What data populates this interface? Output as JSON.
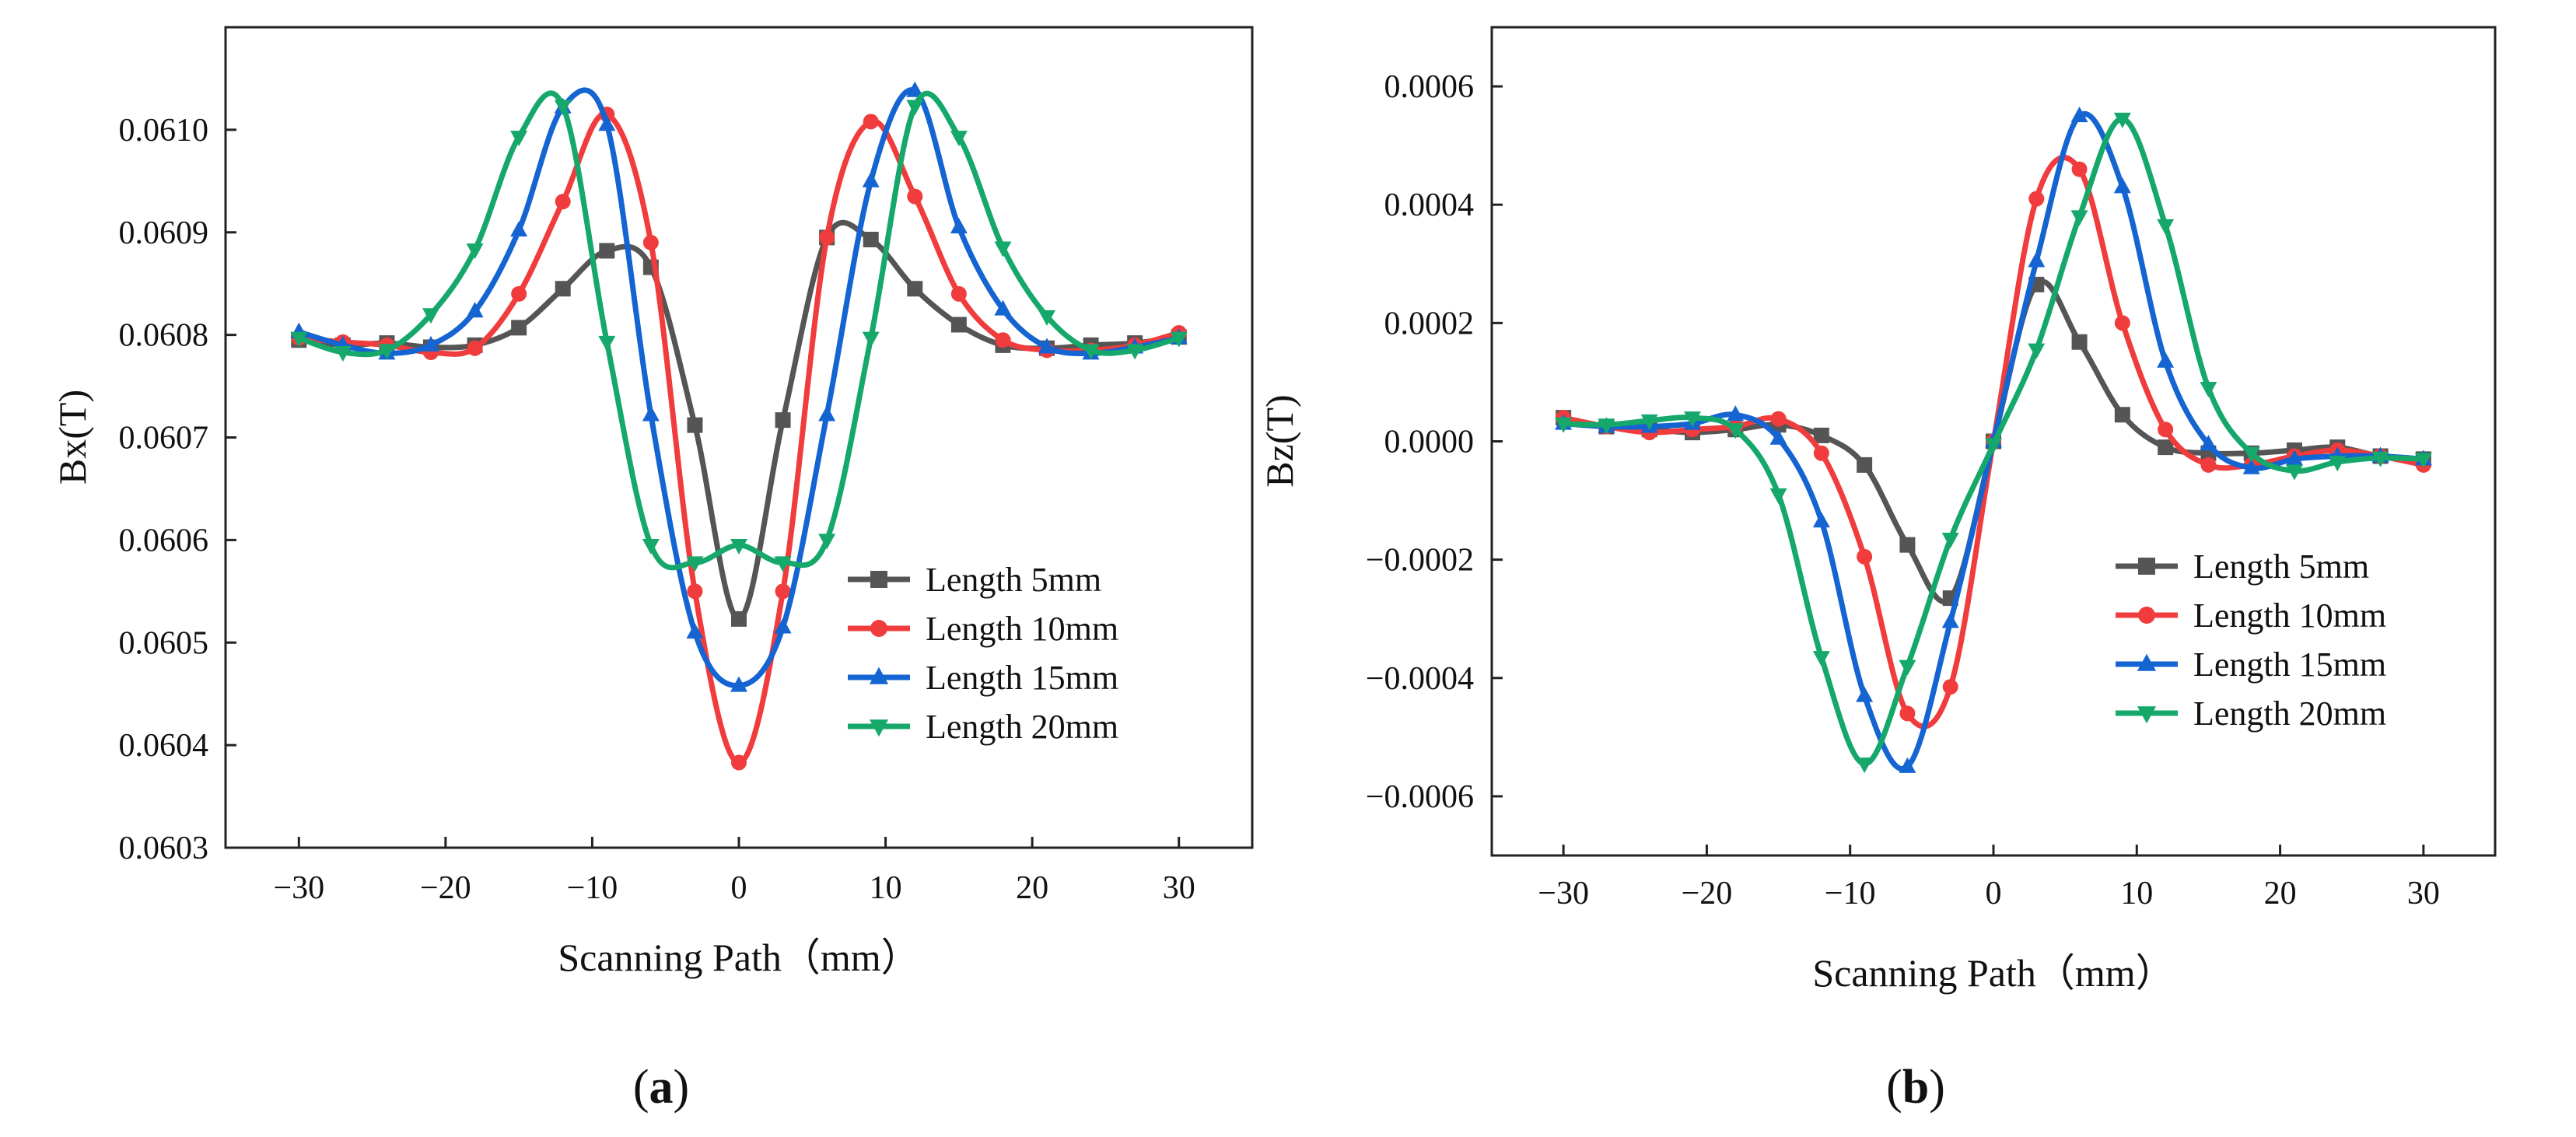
{
  "panels": {
    "a": {
      "label_open": "(",
      "label_letter": "a",
      "label_close": ")"
    },
    "b": {
      "label_open": "(",
      "label_letter": "b",
      "label_close": ")"
    }
  },
  "chart_data": [
    {
      "type": "line",
      "panel": "a",
      "title": "",
      "xlabel": "Scanning Path（mm）",
      "ylabel": "Bx(T)",
      "xlim": [
        -35,
        35
      ],
      "ylim": [
        0.0603,
        0.0611
      ],
      "x_ticks": [
        -30,
        -20,
        -10,
        0,
        10,
        20,
        30
      ],
      "x_tick_labels": [
        "−30",
        "−20",
        "−10",
        "0",
        "10",
        "20",
        "30"
      ],
      "y_ticks": [
        0.0603,
        0.0604,
        0.0605,
        0.0606,
        0.0607,
        0.0608,
        0.0609,
        0.061
      ],
      "y_tick_labels": [
        "0.0603",
        "0.0604",
        "0.0605",
        "0.0606",
        "0.0607",
        "0.0608",
        "0.0609",
        "0.0610"
      ],
      "legend_position": "lower-right",
      "grid": false,
      "x": [
        -30,
        -27,
        -24,
        -21,
        -18,
        -15,
        -12,
        -9,
        -6,
        -3,
        0,
        3,
        6,
        9,
        12,
        15,
        18,
        21,
        24,
        27,
        30
      ],
      "series": [
        {
          "name": "Length 5mm",
          "color": "#555555",
          "marker": "square",
          "values": [
            0.060795,
            0.06079,
            0.060792,
            0.060788,
            0.06079,
            0.060807,
            0.060845,
            0.060882,
            0.060866,
            0.060712,
            0.060523,
            0.060717,
            0.060895,
            0.060893,
            0.060845,
            0.06081,
            0.06079,
            0.060787,
            0.06079,
            0.060792,
            0.060798
          ]
        },
        {
          "name": "Length 10mm",
          "color": "#f03c3c",
          "marker": "circle",
          "values": [
            0.060797,
            0.060793,
            0.06079,
            0.060783,
            0.060787,
            0.06084,
            0.06093,
            0.061015,
            0.06089,
            0.06055,
            0.060383,
            0.06055,
            0.060895,
            0.061008,
            0.060935,
            0.06084,
            0.060795,
            0.060785,
            0.060785,
            0.06079,
            0.060802
          ]
        },
        {
          "name": "Length 15mm",
          "color": "#1464d2",
          "marker": "triangle-up",
          "values": [
            0.060803,
            0.06079,
            0.060782,
            0.06079,
            0.060823,
            0.060902,
            0.061022,
            0.061005,
            0.060722,
            0.06051,
            0.060458,
            0.060515,
            0.060722,
            0.06095,
            0.061038,
            0.060905,
            0.060825,
            0.060788,
            0.060782,
            0.060788,
            0.060797
          ]
        },
        {
          "name": "Length 20mm",
          "color": "#15a86a",
          "marker": "triangle-down",
          "values": [
            0.060797,
            0.060783,
            0.060785,
            0.06082,
            0.060883,
            0.060993,
            0.061023,
            0.060793,
            0.060595,
            0.060578,
            0.060595,
            0.060578,
            0.0606,
            0.060797,
            0.061023,
            0.060993,
            0.060885,
            0.060818,
            0.060785,
            0.060785,
            0.060797
          ]
        }
      ]
    },
    {
      "type": "line",
      "panel": "b",
      "title": "",
      "xlabel": "Scanning Path（mm）",
      "ylabel": "Bz(T)",
      "xlim": [
        -35,
        35
      ],
      "ylim": [
        -0.0007,
        0.0007
      ],
      "x_ticks": [
        -30,
        -20,
        -10,
        0,
        10,
        20,
        30
      ],
      "x_tick_labels": [
        "−30",
        "−20",
        "−10",
        "0",
        "10",
        "20",
        "30"
      ],
      "y_ticks": [
        -0.0006,
        -0.0004,
        -0.0002,
        0,
        0.0002,
        0.0004,
        0.0006
      ],
      "y_tick_labels": [
        "−0.0006",
        "−0.0004",
        "−0.0002",
        "0.0000",
        "0.0002",
        "0.0004",
        "0.0006"
      ],
      "legend_position": "lower-right",
      "grid": false,
      "x": [
        -30,
        -27,
        -24,
        -21,
        -18,
        -15,
        -12,
        -9,
        -6,
        -3,
        0,
        3,
        6,
        9,
        12,
        15,
        18,
        21,
        24,
        27,
        30
      ],
      "series": [
        {
          "name": "Length 5mm",
          "color": "#555555",
          "marker": "square",
          "values": [
            4e-05,
            2.5e-05,
            2e-05,
            1.5e-05,
            2e-05,
            2.8e-05,
            1e-05,
            -4e-05,
            -0.000175,
            -0.000265,
            0.0,
            0.000265,
            0.000168,
            4.5e-05,
            -1e-05,
            -2e-05,
            -2e-05,
            -1.5e-05,
            -1e-05,
            -2.5e-05,
            -3e-05
          ]
        },
        {
          "name": "Length 10mm",
          "color": "#f03c3c",
          "marker": "circle",
          "values": [
            4e-05,
            2.5e-05,
            1.5e-05,
            2e-05,
            2.5e-05,
            3.8e-05,
            -2e-05,
            -0.000195,
            -0.00046,
            -0.000415,
            0.0,
            0.00041,
            0.00046,
            0.0002,
            2e-05,
            -4e-05,
            -4e-05,
            -2.5e-05,
            -1.5e-05,
            -2.5e-05,
            -4e-05
          ]
        },
        {
          "name": "Length 15mm",
          "color": "#1464d2",
          "marker": "triangle-up",
          "values": [
            3e-05,
            2.5e-05,
            2.5e-05,
            3e-05,
            4.5e-05,
            5e-06,
            -0.000135,
            -0.00043,
            -0.00055,
            -0.000305,
            0.0,
            0.000305,
            0.00055,
            0.00043,
            0.000135,
            -5e-06,
            -4.5e-05,
            -3e-05,
            -2.5e-05,
            -2.5e-05,
            -3e-05
          ]
        },
        {
          "name": "Length 20mm",
          "color": "#15a86a",
          "marker": "triangle-down",
          "values": [
            3e-05,
            2.8e-05,
            3.5e-05,
            4e-05,
            2e-05,
            -9e-05,
            -0.000365,
            -0.000545,
            -0.00038,
            -0.000165,
            -5e-06,
            0.000155,
            0.00038,
            0.000545,
            0.000365,
            9e-05,
            -2e-05,
            -5e-05,
            -3.5e-05,
            -2.8e-05,
            -3e-05
          ]
        }
      ]
    }
  ]
}
